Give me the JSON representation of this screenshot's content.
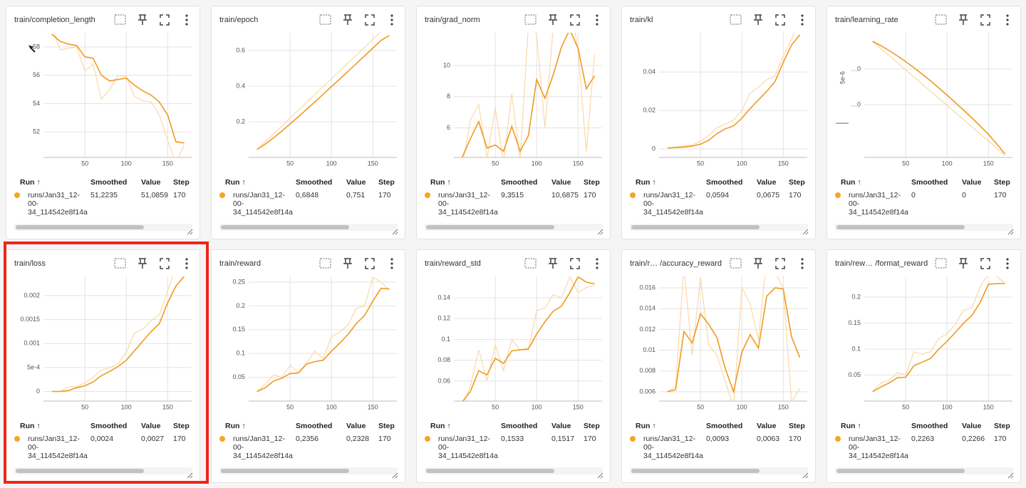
{
  "table_header": {
    "run": "Run ↑",
    "smoothed": "Smoothed",
    "value": "Value",
    "step": "Step"
  },
  "run_name": "runs/Jan31_12-00-34_114542e8f14a",
  "smoothed_color": "#f09a22",
  "raw_color": "#fbd9a6",
  "x": [
    10,
    20,
    30,
    40,
    50,
    60,
    70,
    80,
    90,
    100,
    110,
    120,
    130,
    140,
    150,
    160,
    170
  ],
  "cards": [
    {
      "title": "train/completion_length",
      "chart": {
        "type": "line",
        "xlim": [
          0,
          179
        ],
        "ylim": [
          50.2,
          59
        ],
        "xticks": [
          50,
          100,
          150
        ],
        "yticks": [
          52,
          54,
          56,
          58
        ],
        "smoothed": [
          58.9,
          58.4,
          58.2,
          58.1,
          57.3,
          57.2,
          56,
          55.6,
          55.7,
          55.8,
          55.3,
          54.9,
          54.6,
          54.1,
          53.2,
          51.3,
          51.22
        ],
        "raw": [
          59.5,
          57.8,
          57.9,
          58,
          56.3,
          56.8,
          54.3,
          55,
          56,
          55.9,
          54.5,
          54.2,
          54.1,
          53.2,
          51.4,
          49.8,
          51.09
        ]
      },
      "row": {
        "smoothed": "51,2235",
        "value": "51,0859",
        "step": "170"
      }
    },
    {
      "title": "train/epoch",
      "chart": {
        "type": "line",
        "xlim": [
          0,
          179
        ],
        "ylim": [
          0,
          0.7
        ],
        "xticks": [
          50,
          100,
          150
        ],
        "yticks": [
          0.2,
          0.4,
          0.6
        ],
        "smoothed": [
          0.044,
          0.075,
          0.11,
          0.148,
          0.188,
          0.228,
          0.27,
          0.312,
          0.355,
          0.398,
          0.44,
          0.483,
          0.527,
          0.57,
          0.614,
          0.657,
          0.6848
        ],
        "raw": [
          0.044,
          0.088,
          0.133,
          0.177,
          0.221,
          0.265,
          0.309,
          0.353,
          0.398,
          0.442,
          0.486,
          0.53,
          0.574,
          0.618,
          0.663,
          0.707,
          0.751
        ]
      },
      "row": {
        "smoothed": "0,6848",
        "value": "0,751",
        "step": "170"
      }
    },
    {
      "title": "train/grad_norm",
      "chart": {
        "type": "line",
        "xlim": [
          0,
          179
        ],
        "ylim": [
          4.1,
          12.1
        ],
        "xticks": [
          50,
          100,
          150
        ],
        "yticks": [
          6,
          8,
          10
        ],
        "smoothed": [
          4.1,
          5.3,
          6.4,
          4.7,
          4.9,
          4.5,
          6.1,
          4.5,
          5.5,
          9.1,
          7.9,
          9.4,
          11.2,
          12.3,
          11.1,
          8.5,
          9.35
        ],
        "raw": [
          3.5,
          6.5,
          7.5,
          4,
          7.3,
          3.8,
          8.2,
          3.9,
          12.6,
          12,
          6,
          12.4,
          12.2,
          14,
          11,
          4.5,
          10.69
        ]
      },
      "row": {
        "smoothed": "9,3515",
        "value": "10,6875",
        "step": "170"
      }
    },
    {
      "title": "train/kl",
      "chart": {
        "type": "line",
        "xlim": [
          0,
          179
        ],
        "ylim": [
          -0.0044,
          0.0604
        ],
        "xticks": [
          50,
          100,
          150
        ],
        "yticks": [
          0,
          0.02,
          0.04
        ],
        "smoothed": [
          0.0005,
          0.0007,
          0.001,
          0.0015,
          0.0025,
          0.0045,
          0.008,
          0.0105,
          0.012,
          0.016,
          0.021,
          0.0255,
          0.03,
          0.035,
          0.045,
          0.054,
          0.0594
        ],
        "raw": [
          0.0005,
          0.001,
          0.0015,
          0.002,
          0.004,
          0.007,
          0.011,
          0.013,
          0.015,
          0.02,
          0.029,
          0.032,
          0.036,
          0.038,
          0.048,
          0.057,
          0.0675
        ]
      },
      "row": {
        "smoothed": "0,0594",
        "value": "0,0675",
        "step": "170"
      }
    },
    {
      "title": "train/learning_rate",
      "chart": {
        "type": "line",
        "xlim": [
          0,
          179
        ],
        "ylim": [
          1.52e-06,
          5.02e-06
        ],
        "xticks": [
          50,
          100,
          150
        ],
        "yticks": [
          {
            "value": 3e-06,
            "label": "…0"
          },
          {
            "value": 4e-06,
            "label": "…0"
          }
        ],
        "y_axis_label": "5e-6",
        "smoothed": [
          4.78e-06,
          4.66e-06,
          4.52e-06,
          4.37e-06,
          4.21e-06,
          4.04e-06,
          3.86e-06,
          3.67e-06,
          3.47e-06,
          3.27e-06,
          3.06e-06,
          2.85e-06,
          2.63e-06,
          2.4e-06,
          2.17e-06,
          1.9e-06,
          1.62e-06
        ],
        "raw": [
          4.78e-06,
          4.58e-06,
          4.38e-06,
          4.18e-06,
          3.98e-06,
          3.78e-06,
          3.58e-06,
          3.38e-06,
          3.18e-06,
          2.98e-06,
          2.78e-06,
          2.58e-06,
          2.38e-06,
          2.18e-06,
          1.98e-06,
          1.78e-06,
          1.58e-06
        ]
      },
      "row": {
        "smoothed": "0",
        "value": "0",
        "step": "170"
      }
    },
    {
      "title": "train/loss",
      "chart": {
        "type": "line",
        "xlim": [
          0,
          179
        ],
        "ylim": [
          -0.0002,
          0.0024
        ],
        "xticks": [
          50,
          100,
          150
        ],
        "yticks": [
          0,
          {
            "value": 0.0005,
            "label": "5e-4"
          },
          0.001,
          0.0015,
          0.002
        ],
        "smoothed": [
          0,
          0,
          2e-05,
          8e-05,
          0.00012,
          0.0002,
          0.00033,
          0.00042,
          0.00052,
          0.00065,
          0.00085,
          0.00105,
          0.00125,
          0.00142,
          0.00185,
          0.0022,
          0.0024
        ],
        "raw": [
          0,
          0,
          0.0001,
          0.0001,
          0.00018,
          0.0003,
          0.00045,
          0.0005,
          0.00058,
          0.00082,
          0.00122,
          0.0013,
          0.00148,
          0.0016,
          0.0021,
          0.0026,
          0.0027
        ]
      },
      "row": {
        "smoothed": "0,0024",
        "value": "0,0027",
        "step": "170"
      }
    },
    {
      "title": "train/reward",
      "chart": {
        "type": "line",
        "xlim": [
          0,
          179
        ],
        "ylim": [
          0,
          0.262
        ],
        "xticks": [
          50,
          100,
          150
        ],
        "yticks": [
          0.05,
          0.1,
          0.15,
          0.2,
          0.25
        ],
        "smoothed": [
          0.02,
          0.028,
          0.042,
          0.048,
          0.058,
          0.059,
          0.078,
          0.083,
          0.086,
          0.105,
          0.122,
          0.14,
          0.163,
          0.18,
          0.21,
          0.237,
          0.2356
        ],
        "raw": [
          0.02,
          0.035,
          0.055,
          0.05,
          0.075,
          0.06,
          0.08,
          0.105,
          0.09,
          0.135,
          0.145,
          0.16,
          0.195,
          0.2,
          0.26,
          0.25,
          0.2328
        ]
      },
      "row": {
        "smoothed": "0,2356",
        "value": "0,2328",
        "step": "170"
      }
    },
    {
      "title": "train/reward_std",
      "chart": {
        "type": "line",
        "xlim": [
          0,
          179
        ],
        "ylim": [
          0.0408,
          0.1605
        ],
        "xticks": [
          50,
          100,
          150
        ],
        "yticks": [
          0.06,
          0.08,
          0.1,
          0.12,
          0.14
        ],
        "smoothed": [
          0.04,
          0.05,
          0.07,
          0.066,
          0.082,
          0.077,
          0.089,
          0.09,
          0.091,
          0.105,
          0.117,
          0.127,
          0.132,
          0.145,
          0.16,
          0.155,
          0.1533
        ],
        "raw": [
          0.035,
          0.055,
          0.09,
          0.06,
          0.095,
          0.07,
          0.1,
          0.09,
          0.09,
          0.128,
          0.13,
          0.143,
          0.14,
          0.16,
          0.145,
          0.15,
          0.1517
        ]
      },
      "row": {
        "smoothed": "0,1533",
        "value": "0,1517",
        "step": "170"
      }
    },
    {
      "title": "train/r… /accuracy_reward",
      "chart": {
        "type": "line",
        "xlim": [
          0,
          179
        ],
        "ylim": [
          0.0051,
          0.0171
        ],
        "xticks": [
          50,
          100,
          150
        ],
        "yticks": [
          0.006,
          0.008,
          0.01,
          0.012,
          0.014,
          0.016
        ],
        "smoothed": [
          0.006,
          0.0062,
          0.0118,
          0.0107,
          0.0135,
          0.0125,
          0.0112,
          0.0082,
          0.006,
          0.0098,
          0.0115,
          0.0102,
          0.0152,
          0.016,
          0.0159,
          0.0113,
          0.0093
        ],
        "raw": [
          0.006,
          0.0065,
          0.018,
          0.0095,
          0.017,
          0.0105,
          0.0095,
          0.007,
          0.0045,
          0.016,
          0.0145,
          0.011,
          0.019,
          0.0175,
          0.016,
          0.005,
          0.0063
        ]
      },
      "row": {
        "smoothed": "0,0093",
        "value": "0,0063",
        "step": "170"
      }
    },
    {
      "title": "train/rew… /format_reward",
      "chart": {
        "type": "line",
        "xlim": [
          0,
          179
        ],
        "ylim": [
          0,
          0.24
        ],
        "xticks": [
          50,
          100,
          150
        ],
        "yticks": [
          0.05,
          0.1,
          0.15,
          0.2
        ],
        "smoothed": [
          0.018,
          0.027,
          0.035,
          0.045,
          0.046,
          0.068,
          0.075,
          0.082,
          0.1,
          0.115,
          0.132,
          0.15,
          0.165,
          0.19,
          0.225,
          0.226,
          0.2263
        ],
        "raw": [
          0.018,
          0.035,
          0.04,
          0.055,
          0.05,
          0.095,
          0.09,
          0.095,
          0.12,
          0.13,
          0.148,
          0.175,
          0.18,
          0.22,
          0.245,
          0.24,
          0.2266
        ]
      },
      "row": {
        "smoothed": "0,2263",
        "value": "0,2266",
        "step": "170"
      }
    }
  ]
}
